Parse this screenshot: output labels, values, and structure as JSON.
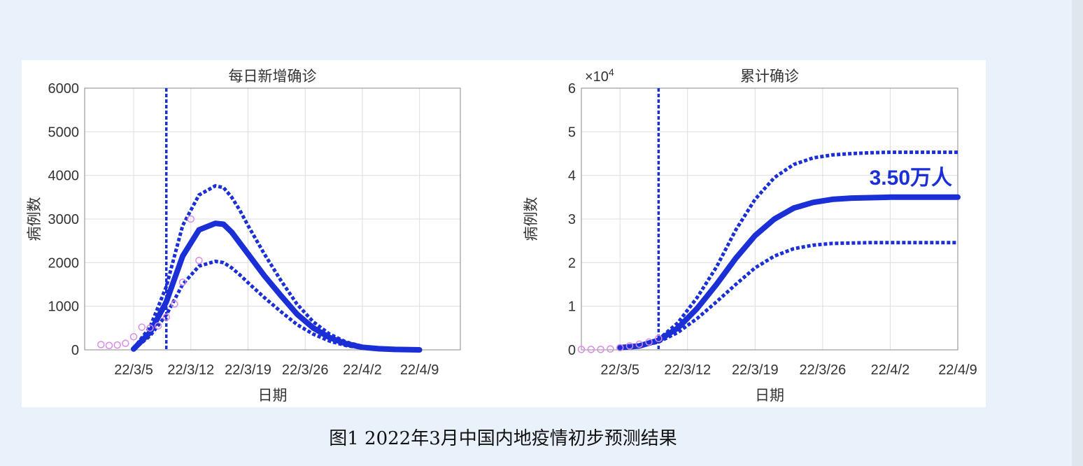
{
  "caption": "图1 2022年3月中国内地疫情初步预测结果",
  "colors": {
    "line": "#1a2fd6",
    "observed": "#d98be6",
    "grid": "#dedede",
    "axis": "#333333"
  },
  "chart_data": [
    {
      "type": "line",
      "title": "每日新增确诊",
      "xlabel": "日期",
      "ylabel": "病例数",
      "ylim": [
        0,
        6000
      ],
      "yticks": [
        0,
        1000,
        2000,
        3000,
        4000,
        5000,
        6000
      ],
      "ytick_labels": [
        "0",
        "1000",
        "2000",
        "3000",
        "4000",
        "5000",
        "6000"
      ],
      "xlim": [
        -6,
        40
      ],
      "xticks": [
        0,
        7,
        14,
        21,
        28,
        35
      ],
      "xtick_labels": [
        "22/3/5",
        "22/3/12",
        "22/3/19",
        "22/3/26",
        "22/4/2",
        "22/4/9"
      ],
      "x_unit": "days since 22/3/5",
      "grid": true,
      "vline": 4,
      "series": [
        {
          "style": "solid",
          "x": [
            0,
            2,
            4,
            6,
            8,
            10,
            11,
            12,
            13,
            14,
            16,
            18,
            20,
            22,
            24,
            26,
            28,
            30,
            32,
            35
          ],
          "y": [
            20,
            400,
            1100,
            2150,
            2750,
            2900,
            2880,
            2700,
            2450,
            2200,
            1700,
            1250,
            820,
            500,
            280,
            140,
            60,
            25,
            10,
            0
          ]
        },
        {
          "style": "dotted",
          "x": [
            0,
            2,
            4,
            6,
            8,
            10,
            11,
            12,
            13,
            14,
            16,
            18,
            20,
            22,
            24,
            26,
            28,
            30,
            32,
            35
          ],
          "y": [
            30,
            520,
            1450,
            2850,
            3550,
            3760,
            3720,
            3500,
            3200,
            2850,
            2200,
            1600,
            1050,
            640,
            360,
            180,
            80,
            30,
            10,
            0
          ]
        },
        {
          "style": "dotted",
          "x": [
            0,
            2,
            4,
            6,
            8,
            10,
            11,
            12,
            13,
            14,
            16,
            18,
            20,
            22,
            24,
            26,
            28,
            30,
            32,
            35
          ],
          "y": [
            15,
            320,
            800,
            1500,
            1920,
            2030,
            2000,
            1880,
            1720,
            1540,
            1200,
            880,
            580,
            360,
            200,
            100,
            40,
            15,
            5,
            0
          ]
        },
        {
          "style": "markers",
          "x": [
            -4,
            -3,
            -2,
            -1,
            0,
            1,
            2,
            3,
            4,
            5,
            6,
            7,
            8
          ],
          "y": [
            120,
            100,
            110,
            150,
            300,
            520,
            500,
            550,
            750,
            1050,
            1550,
            3000,
            2050
          ]
        }
      ]
    },
    {
      "type": "line",
      "title": "累计确诊",
      "xlabel": "日期",
      "ylabel": "病例数",
      "exponent": "×10",
      "exponent_power": "4",
      "ylim": [
        0,
        6
      ],
      "yticks": [
        0,
        1,
        2,
        3,
        4,
        5,
        6
      ],
      "ytick_labels": [
        "0",
        "1",
        "2",
        "3",
        "4",
        "5",
        "6"
      ],
      "xlim": [
        -4,
        35
      ],
      "xticks": [
        0,
        7,
        14,
        21,
        28,
        35
      ],
      "xtick_labels": [
        "22/3/5",
        "22/3/12",
        "22/3/19",
        "22/3/26",
        "22/4/2",
        "22/4/9"
      ],
      "x_unit": "days since 22/3/5",
      "grid": true,
      "vline": 4,
      "annotation": "3.50万人",
      "series": [
        {
          "style": "solid",
          "x": [
            0,
            2,
            4,
            6,
            8,
            10,
            12,
            14,
            16,
            18,
            20,
            22,
            24,
            26,
            28,
            30,
            32,
            35
          ],
          "y": [
            0.05,
            0.09,
            0.22,
            0.5,
            0.95,
            1.5,
            2.1,
            2.62,
            3.0,
            3.25,
            3.38,
            3.45,
            3.48,
            3.49,
            3.5,
            3.5,
            3.5,
            3.5
          ]
        },
        {
          "style": "dotted",
          "x": [
            0,
            2,
            4,
            6,
            8,
            10,
            12,
            14,
            16,
            18,
            20,
            22,
            24,
            26,
            28,
            30,
            32,
            35
          ],
          "y": [
            0.05,
            0.1,
            0.24,
            0.62,
            1.2,
            1.9,
            2.75,
            3.45,
            3.95,
            4.25,
            4.4,
            4.47,
            4.5,
            4.52,
            4.53,
            4.53,
            4.53,
            4.53
          ]
        },
        {
          "style": "dotted",
          "x": [
            0,
            2,
            4,
            6,
            8,
            10,
            12,
            14,
            16,
            18,
            20,
            22,
            24,
            26,
            28,
            30,
            32,
            35
          ],
          "y": [
            0.05,
            0.08,
            0.18,
            0.4,
            0.72,
            1.1,
            1.5,
            1.88,
            2.15,
            2.32,
            2.4,
            2.44,
            2.45,
            2.46,
            2.46,
            2.46,
            2.46,
            2.46
          ]
        },
        {
          "style": "markers",
          "x": [
            -4,
            -3,
            -2,
            -1,
            0,
            1,
            2,
            3,
            4
          ],
          "y": [
            0.01,
            0.01,
            0.01,
            0.02,
            0.05,
            0.09,
            0.13,
            0.18,
            0.26
          ]
        }
      ]
    }
  ]
}
